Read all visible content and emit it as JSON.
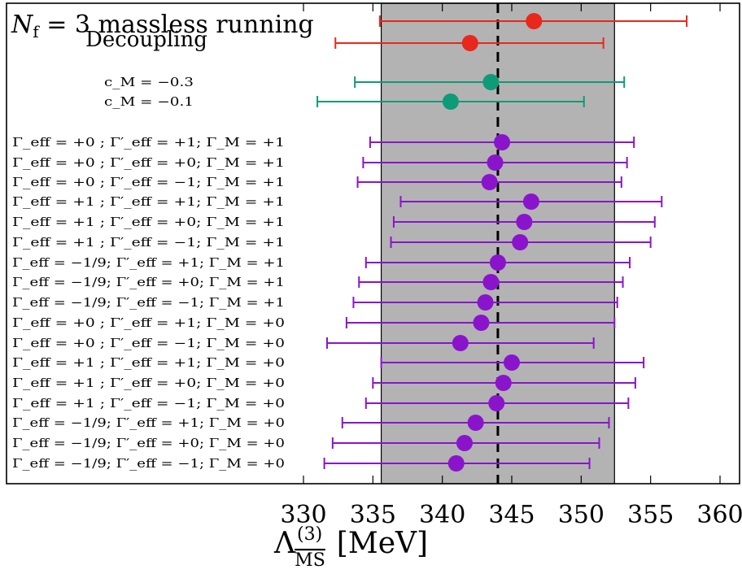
{
  "chart_data": {
    "type": "scatter",
    "title": "N_f = 3 massless running",
    "subtitle": "Decoupling",
    "xlabel": "Λ_MS^(3) [MeV]",
    "xlim": [
      327,
      361
    ],
    "xticks": [
      330,
      335,
      340,
      345,
      350,
      355,
      360
    ],
    "band": {
      "low": 335.6,
      "high": 352.4,
      "color": "#b3b3b3"
    },
    "reference_line": 344.0,
    "series": [
      {
        "color": "#e8281c",
        "points": [
          {
            "label": "",
            "value": 346.6,
            "err_low": 335.5,
            "err_high": 357.6
          },
          {
            "label": "",
            "value": 342.0,
            "err_low": 332.3,
            "err_high": 351.6
          }
        ]
      },
      {
        "color": "#0e9b78",
        "points": [
          {
            "label": "c_M = −0.3",
            "value": 343.5,
            "err_low": 333.7,
            "err_high": 353.1
          },
          {
            "label": "c_M = −0.1",
            "value": 340.6,
            "err_low": 331.0,
            "err_high": 350.2
          }
        ]
      },
      {
        "color": "#8a14cc",
        "points": [
          {
            "label": "Γ_eff = +0   ; Γ′_eff = +1; Γ_M = +1",
            "value": 344.3,
            "err_low": 334.8,
            "err_high": 353.8
          },
          {
            "label": "Γ_eff = +0   ; Γ′_eff = +0; Γ_M = +1",
            "value": 343.8,
            "err_low": 334.3,
            "err_high": 353.3
          },
          {
            "label": "Γ_eff = +0   ; Γ′_eff = −1; Γ_M = +1",
            "value": 343.4,
            "err_low": 333.9,
            "err_high": 352.9
          },
          {
            "label": "Γ_eff = +1   ; Γ′_eff = +1; Γ_M = +1",
            "value": 346.4,
            "err_low": 337.0,
            "err_high": 355.8
          },
          {
            "label": "Γ_eff = +1   ; Γ′_eff = +0; Γ_M = +1",
            "value": 345.9,
            "err_low": 336.5,
            "err_high": 355.3
          },
          {
            "label": "Γ_eff = +1   ; Γ′_eff = −1; Γ_M = +1",
            "value": 345.6,
            "err_low": 336.3,
            "err_high": 355.0
          },
          {
            "label": "Γ_eff = −1/9; Γ′_eff = +1; Γ_M = +1",
            "value": 344.0,
            "err_low": 334.5,
            "err_high": 353.5
          },
          {
            "label": "Γ_eff = −1/9; Γ′_eff = +0; Γ_M = +1",
            "value": 343.5,
            "err_low": 334.0,
            "err_high": 353.0
          },
          {
            "label": "Γ_eff = −1/9; Γ′_eff = −1; Γ_M = +1",
            "value": 343.1,
            "err_low": 333.6,
            "err_high": 352.6
          },
          {
            "label": "Γ_eff = +0   ; Γ′_eff = +1; Γ_M = +0",
            "value": 342.8,
            "err_low": 333.1,
            "err_high": 352.4
          },
          {
            "label": "Γ_eff = +0   ; Γ′_eff = −1; Γ_M = +0",
            "value": 341.3,
            "err_low": 331.7,
            "err_high": 350.9
          },
          {
            "label": "Γ_eff = +1   ; Γ′_eff = +1; Γ_M = +0",
            "value": 345.0,
            "err_low": 335.6,
            "err_high": 354.5
          },
          {
            "label": "Γ_eff = +1   ; Γ′_eff = +0; Γ_M = +0",
            "value": 344.4,
            "err_low": 335.0,
            "err_high": 353.9
          },
          {
            "label": "Γ_eff = +1   ; Γ′_eff = −1; Γ_M = +0",
            "value": 343.9,
            "err_low": 334.5,
            "err_high": 353.4
          },
          {
            "label": "Γ_eff = −1/9; Γ′_eff = +1; Γ_M = +0",
            "value": 342.4,
            "err_low": 332.8,
            "err_high": 352.0
          },
          {
            "label": "Γ_eff = −1/9; Γ′_eff = +0; Γ_M = +0",
            "value": 341.6,
            "err_low": 332.1,
            "err_high": 351.3
          },
          {
            "label": "Γ_eff = −1/9; Γ′_eff = −1; Γ_M = +0",
            "value": 341.0,
            "err_low": 331.5,
            "err_high": 350.6
          }
        ]
      }
    ]
  }
}
